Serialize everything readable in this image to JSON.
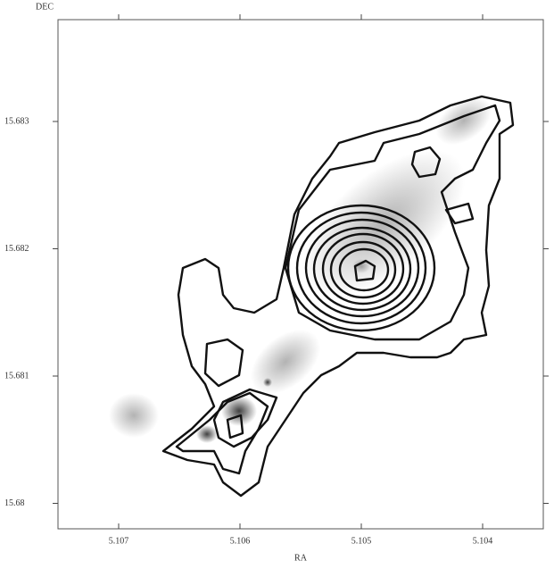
{
  "chart_data": {
    "type": "contour",
    "xlabel": "RA",
    "ylabel": "DEC",
    "xlim": [
      5.1075,
      5.1035
    ],
    "xticks": [
      5.107,
      5.106,
      5.105,
      5.104
    ],
    "ylim": [
      15.6798,
      15.6838
    ],
    "yticks": [
      15.68,
      15.681,
      15.682,
      15.683
    ]
  }
}
